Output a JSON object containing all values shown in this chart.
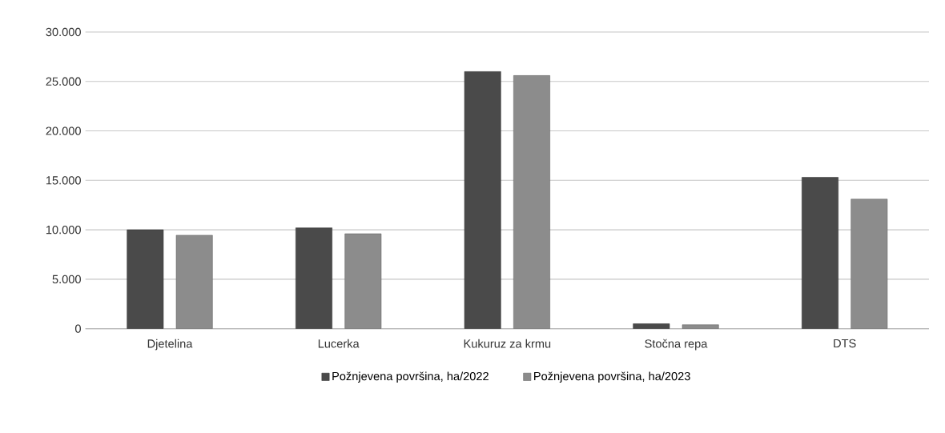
{
  "chart_data": {
    "type": "bar",
    "categories": [
      "Djetelina",
      "Lucerka",
      "Kukuruz za krmu",
      "Stočna repa",
      "DTS"
    ],
    "series": [
      {
        "name": "Požnjevena površina, ha/2022",
        "color": "#4a4a4a",
        "values": [
          10000,
          10200,
          26000,
          500,
          15300
        ]
      },
      {
        "name": "Požnjevena površina, ha/2023",
        "color": "#8c8c8c",
        "values": [
          9450,
          9600,
          25600,
          400,
          13100
        ]
      }
    ],
    "ylim": [
      0,
      30000
    ],
    "yticks": [
      {
        "value": 0,
        "label": "0"
      },
      {
        "value": 5000,
        "label": "5.000"
      },
      {
        "value": 10000,
        "label": "10.000"
      },
      {
        "value": 15000,
        "label": "15.000"
      },
      {
        "value": 20000,
        "label": "20.000"
      },
      {
        "value": 25000,
        "label": "25.000"
      },
      {
        "value": 30000,
        "label": "30.000"
      }
    ],
    "grid": "y",
    "legend": "bottom"
  }
}
